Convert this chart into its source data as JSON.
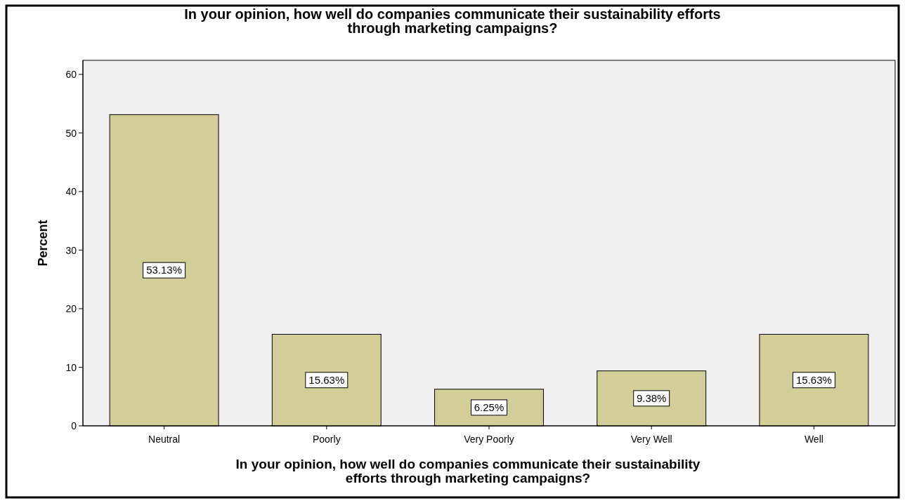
{
  "chart_data": {
    "type": "bar",
    "title": "In your opinion, how well do companies communicate their sustainability efforts\nthrough marketing campaigns?",
    "xlabel": "In your opinion, how well do companies communicate their sustainability\nefforts through marketing campaigns?",
    "ylabel": "Percent",
    "categories": [
      "Neutral",
      "Poorly",
      "Very Poorly",
      "Very Well",
      "Well"
    ],
    "values": [
      53.13,
      15.63,
      6.25,
      9.38,
      15.63
    ],
    "value_labels": [
      "53.13%",
      "15.63%",
      "6.25%",
      "9.38%",
      "15.63%"
    ],
    "color": "#d3ce97",
    "ylim": [
      0,
      62.4
    ],
    "yticks": [
      0,
      10,
      20,
      30,
      40,
      50,
      60
    ],
    "grid": false
  }
}
